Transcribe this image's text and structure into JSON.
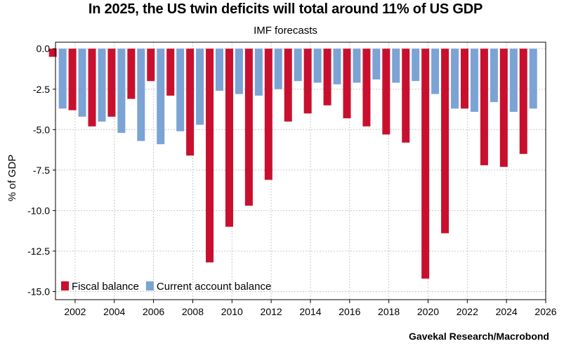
{
  "chart_data": {
    "type": "bar",
    "title": "In 2025, the US twin deficits will total around 11% of US GDP",
    "subtitle": "IMF forecasts",
    "ylabel": "% of GDP",
    "xlabel": "",
    "ylim": [
      -15.5,
      0.4
    ],
    "yticks": [
      "0.0",
      "-2.5",
      "-5.0",
      "-7.5",
      "-10.0",
      "-12.5",
      "-15.0"
    ],
    "ytick_values": [
      0,
      -2.5,
      -5,
      -7.5,
      -10,
      -12.5,
      -15
    ],
    "xticks": [
      "2002",
      "2004",
      "2006",
      "2008",
      "2010",
      "2012",
      "2014",
      "2016",
      "2018",
      "2020",
      "2022",
      "2024",
      "2026"
    ],
    "xlim": [
      2001,
      2026
    ],
    "categories": [
      2001,
      2002,
      2003,
      2004,
      2005,
      2006,
      2007,
      2008,
      2009,
      2010,
      2011,
      2012,
      2013,
      2014,
      2015,
      2016,
      2017,
      2018,
      2019,
      2020,
      2021,
      2022,
      2023,
      2024,
      2025
    ],
    "grid": true,
    "legend_position": "bottom-left",
    "series": [
      {
        "name": "Fiscal balance",
        "color": "#c8102e",
        "values": [
          -0.5,
          -3.8,
          -4.8,
          -4.2,
          -3.1,
          -2.0,
          -2.9,
          -6.6,
          -13.2,
          -11.0,
          -9.7,
          -8.1,
          -4.5,
          -4.0,
          -3.5,
          -4.3,
          -4.8,
          -5.3,
          -5.8,
          -14.2,
          -11.4,
          -3.7,
          -7.2,
          -7.3,
          -6.5
        ]
      },
      {
        "name": "Current account balance",
        "color": "#7ba3d4",
        "values": [
          -3.7,
          -4.2,
          -4.5,
          -5.2,
          -5.7,
          -5.9,
          -5.1,
          -4.7,
          -2.6,
          -2.8,
          -2.9,
          -2.5,
          -2.0,
          -2.1,
          -2.2,
          -2.1,
          -1.9,
          -2.1,
          -2.0,
          -2.8,
          -3.7,
          -3.9,
          -3.3,
          -3.9,
          -3.7
        ]
      }
    ],
    "source": "Gavekal Research/Macrobond"
  }
}
